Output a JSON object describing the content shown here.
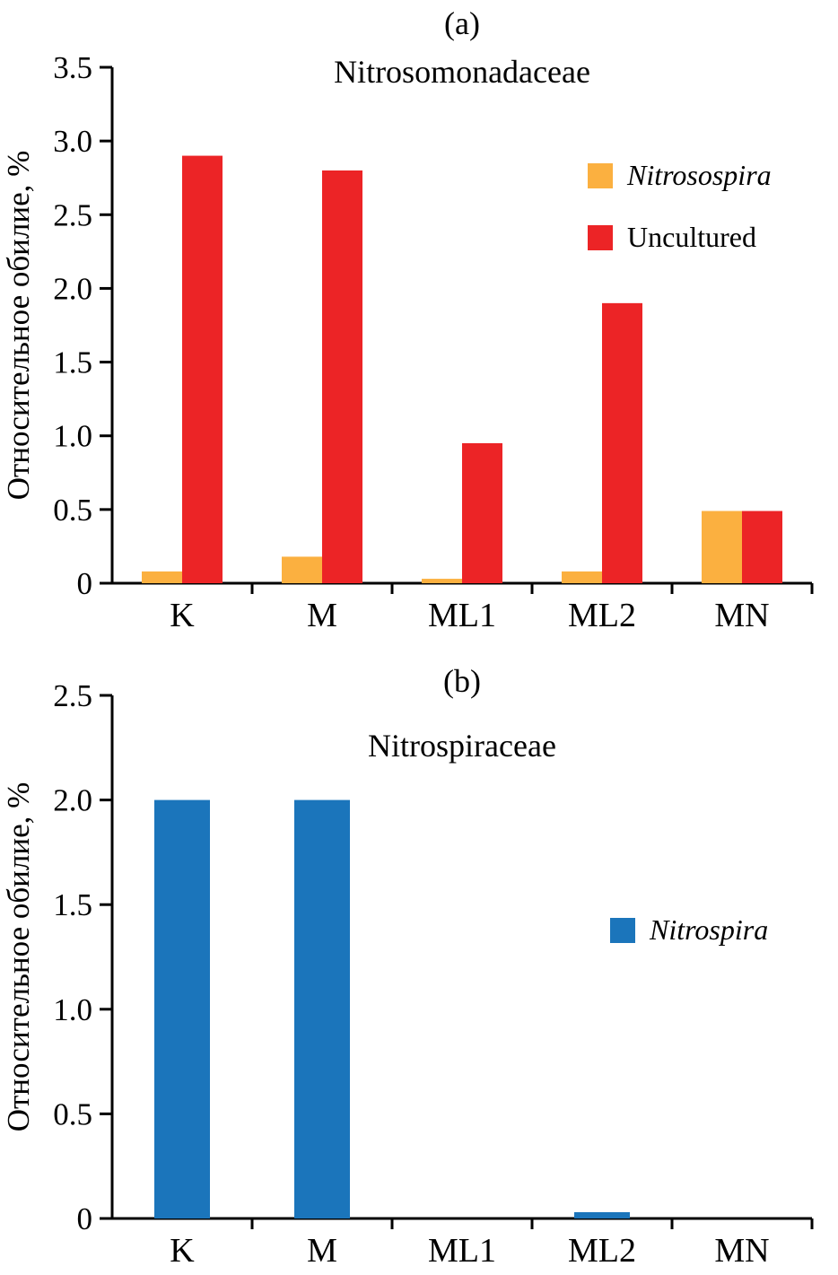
{
  "figure": {
    "background": "#ffffff",
    "axis_color": "#000000",
    "text_color": "#000000"
  },
  "chart_data": [
    {
      "type": "bar",
      "panel_label": "(a)",
      "title": "Nitrosomonadaceae",
      "xlabel": "",
      "ylabel": "Относительное обилие, %",
      "categories": [
        "K",
        "M",
        "ML1",
        "ML2",
        "MN"
      ],
      "series": [
        {
          "name": "Nitrosospira",
          "color": "#FBB040",
          "italic": true,
          "values": [
            0.08,
            0.18,
            0.03,
            0.08,
            0.49
          ]
        },
        {
          "name": "Uncultured",
          "color": "#EC2426",
          "italic": false,
          "values": [
            2.9,
            2.8,
            0.95,
            1.9,
            0.49
          ]
        }
      ],
      "ylim": [
        0,
        3.5
      ],
      "yticks": [
        "0",
        "0.5",
        "1.0",
        "1.5",
        "2.0",
        "2.5",
        "3.0",
        "3.5"
      ],
      "grid": false,
      "legend_position": "upper-right"
    },
    {
      "type": "bar",
      "panel_label": "(b)",
      "title": "Nitrospiraceae",
      "xlabel": "",
      "ylabel": "Относительное обилие, %",
      "categories": [
        "K",
        "M",
        "ML1",
        "ML2",
        "MN"
      ],
      "series": [
        {
          "name": "Nitrospira",
          "color": "#1B75BB",
          "italic": true,
          "values": [
            2.0,
            2.0,
            0,
            0.03,
            0
          ]
        }
      ],
      "ylim": [
        0,
        2.5
      ],
      "yticks": [
        "0",
        "0.5",
        "1.0",
        "1.5",
        "2.0",
        "2.5"
      ],
      "grid": false,
      "legend_position": "middle-right"
    }
  ]
}
